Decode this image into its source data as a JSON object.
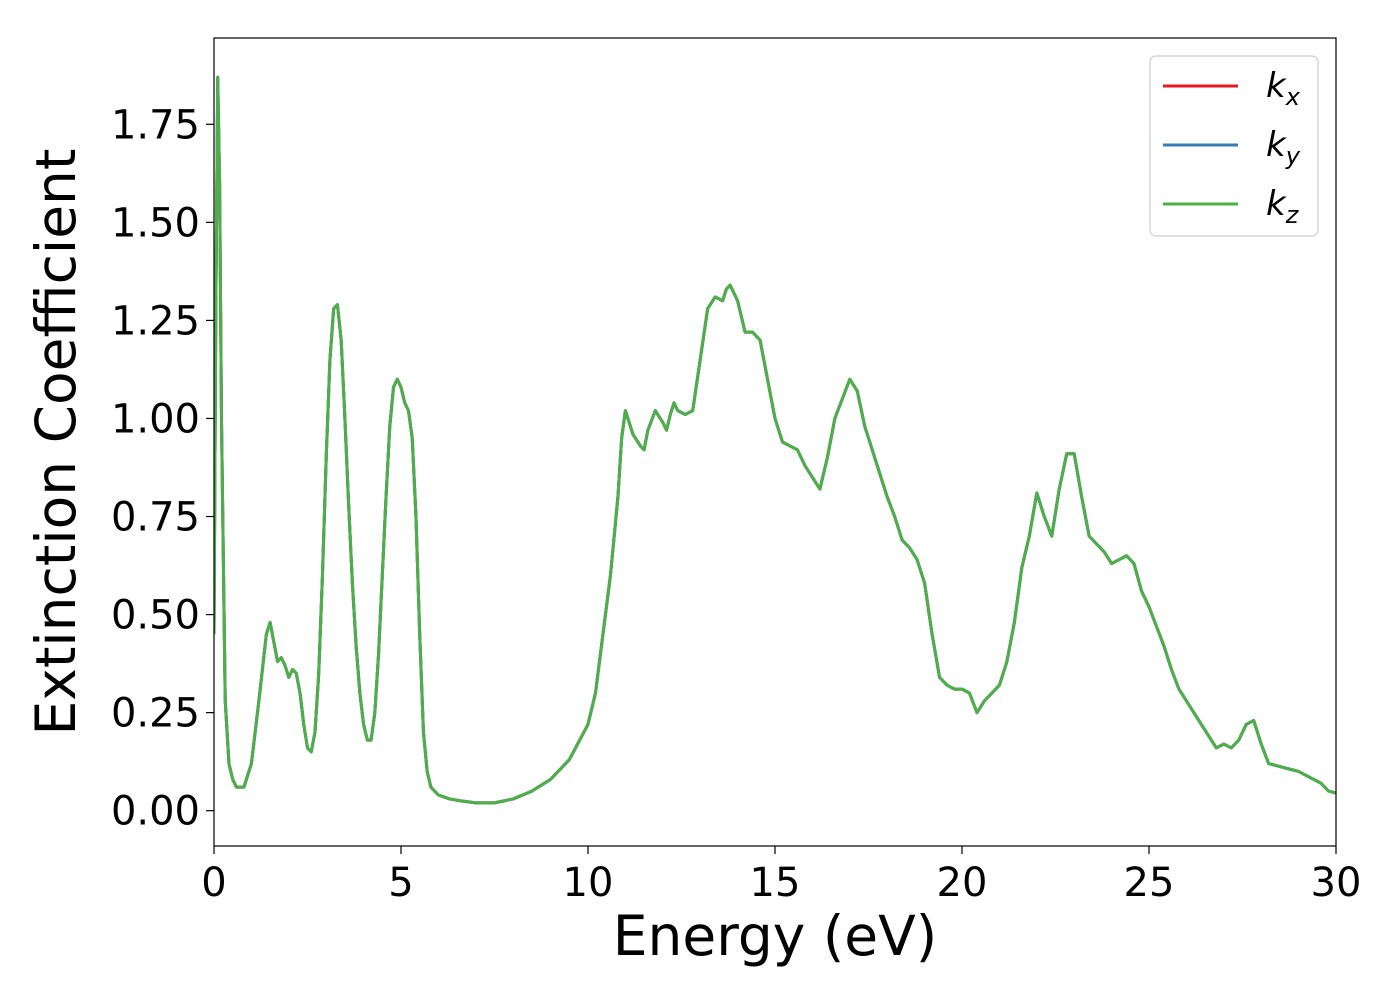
{
  "chart_data": {
    "type": "line",
    "title": "",
    "xlabel": "Energy (eV)",
    "ylabel": "Extinction Coefficient",
    "xlim": [
      0,
      30
    ],
    "ylim": [
      -0.09,
      1.97
    ],
    "xticks": [
      0,
      5,
      10,
      15,
      20,
      25,
      30
    ],
    "xtick_labels": [
      "0",
      "5",
      "10",
      "15",
      "20",
      "25",
      "30"
    ],
    "yticks": [
      0.0,
      0.25,
      0.5,
      0.75,
      1.0,
      1.25,
      1.5,
      1.75
    ],
    "ytick_labels": [
      "0.00",
      "0.25",
      "0.50",
      "0.75",
      "1.00",
      "1.25",
      "1.50",
      "1.75"
    ],
    "grid": false,
    "legend_position": "top-right",
    "x": [
      0,
      0.05,
      0.1,
      0.15,
      0.2,
      0.3,
      0.4,
      0.5,
      0.6,
      0.8,
      1.0,
      1.2,
      1.4,
      1.5,
      1.6,
      1.7,
      1.8,
      1.9,
      2.0,
      2.1,
      2.2,
      2.3,
      2.4,
      2.5,
      2.6,
      2.7,
      2.8,
      2.9,
      3.0,
      3.1,
      3.2,
      3.3,
      3.4,
      3.5,
      3.6,
      3.7,
      3.8,
      3.9,
      4.0,
      4.1,
      4.2,
      4.3,
      4.4,
      4.5,
      4.6,
      4.7,
      4.8,
      4.9,
      5.0,
      5.1,
      5.2,
      5.3,
      5.4,
      5.5,
      5.6,
      5.7,
      5.8,
      6.0,
      6.3,
      6.6,
      7.0,
      7.5,
      8.0,
      8.5,
      9.0,
      9.5,
      10.0,
      10.2,
      10.4,
      10.6,
      10.8,
      10.9,
      11.0,
      11.2,
      11.4,
      11.5,
      11.6,
      11.8,
      12.0,
      12.1,
      12.2,
      12.3,
      12.4,
      12.6,
      12.8,
      13.0,
      13.2,
      13.4,
      13.6,
      13.7,
      13.8,
      14.0,
      14.2,
      14.4,
      14.6,
      14.8,
      15.0,
      15.2,
      15.4,
      15.6,
      15.8,
      16.0,
      16.2,
      16.4,
      16.6,
      16.8,
      17.0,
      17.2,
      17.4,
      17.6,
      17.8,
      18.0,
      18.2,
      18.4,
      18.6,
      18.8,
      19.0,
      19.2,
      19.4,
      19.6,
      19.8,
      20.0,
      20.2,
      20.4,
      20.6,
      20.8,
      21.0,
      21.2,
      21.4,
      21.6,
      21.8,
      22.0,
      22.2,
      22.4,
      22.6,
      22.8,
      23.0,
      23.2,
      23.4,
      23.6,
      23.8,
      24.0,
      24.2,
      24.4,
      24.6,
      24.8,
      25.0,
      25.2,
      25.4,
      25.6,
      25.8,
      26.0,
      26.2,
      26.4,
      26.6,
      26.8,
      27.0,
      27.2,
      27.4,
      27.6,
      27.8,
      28.0,
      28.2,
      28.4,
      28.6,
      28.8,
      29.0,
      29.2,
      29.4,
      29.6,
      29.8,
      30.0
    ],
    "series": [
      {
        "name": "k",
        "name_sub": "x",
        "color": "#e41a1c",
        "values": [
          0.45,
          1.3,
          1.87,
          1.6,
          1.0,
          0.28,
          0.12,
          0.08,
          0.06,
          0.06,
          0.12,
          0.28,
          0.45,
          0.48,
          0.43,
          0.38,
          0.39,
          0.37,
          0.34,
          0.36,
          0.35,
          0.3,
          0.22,
          0.16,
          0.15,
          0.2,
          0.35,
          0.6,
          0.9,
          1.15,
          1.28,
          1.29,
          1.2,
          1.0,
          0.78,
          0.58,
          0.42,
          0.3,
          0.22,
          0.18,
          0.18,
          0.25,
          0.4,
          0.6,
          0.8,
          0.98,
          1.08,
          1.1,
          1.08,
          1.04,
          1.02,
          0.95,
          0.75,
          0.45,
          0.2,
          0.1,
          0.06,
          0.04,
          0.03,
          0.025,
          0.02,
          0.02,
          0.03,
          0.05,
          0.08,
          0.13,
          0.22,
          0.3,
          0.45,
          0.6,
          0.8,
          0.95,
          1.02,
          0.96,
          0.93,
          0.92,
          0.97,
          1.02,
          0.99,
          0.97,
          1.01,
          1.04,
          1.02,
          1.01,
          1.02,
          1.15,
          1.28,
          1.31,
          1.3,
          1.33,
          1.34,
          1.3,
          1.22,
          1.22,
          1.2,
          1.1,
          1.0,
          0.94,
          0.93,
          0.92,
          0.88,
          0.85,
          0.82,
          0.9,
          1.0,
          1.05,
          1.1,
          1.07,
          0.98,
          0.92,
          0.86,
          0.8,
          0.75,
          0.69,
          0.67,
          0.64,
          0.58,
          0.45,
          0.34,
          0.32,
          0.31,
          0.31,
          0.3,
          0.25,
          0.28,
          0.3,
          0.32,
          0.38,
          0.48,
          0.62,
          0.7,
          0.81,
          0.75,
          0.7,
          0.82,
          0.91,
          0.91,
          0.8,
          0.7,
          0.68,
          0.66,
          0.63,
          0.64,
          0.65,
          0.63,
          0.56,
          0.52,
          0.47,
          0.42,
          0.36,
          0.31,
          0.28,
          0.25,
          0.22,
          0.19,
          0.16,
          0.17,
          0.16,
          0.18,
          0.22,
          0.23,
          0.17,
          0.12,
          0.115,
          0.11,
          0.105,
          0.1,
          0.09,
          0.08,
          0.07,
          0.05,
          0.045
        ]
      },
      {
        "name": "k",
        "name_sub": "y",
        "color": "#377eb8",
        "values": [
          0.45,
          1.3,
          1.87,
          1.6,
          1.0,
          0.28,
          0.12,
          0.08,
          0.06,
          0.06,
          0.12,
          0.28,
          0.45,
          0.48,
          0.43,
          0.38,
          0.39,
          0.37,
          0.34,
          0.36,
          0.35,
          0.3,
          0.22,
          0.16,
          0.15,
          0.2,
          0.35,
          0.6,
          0.9,
          1.15,
          1.28,
          1.29,
          1.2,
          1.0,
          0.78,
          0.58,
          0.42,
          0.3,
          0.22,
          0.18,
          0.18,
          0.25,
          0.4,
          0.6,
          0.8,
          0.98,
          1.08,
          1.1,
          1.08,
          1.04,
          1.02,
          0.95,
          0.75,
          0.45,
          0.2,
          0.1,
          0.06,
          0.04,
          0.03,
          0.025,
          0.02,
          0.02,
          0.03,
          0.05,
          0.08,
          0.13,
          0.22,
          0.3,
          0.45,
          0.6,
          0.8,
          0.95,
          1.02,
          0.96,
          0.93,
          0.92,
          0.97,
          1.02,
          0.99,
          0.97,
          1.01,
          1.04,
          1.02,
          1.01,
          1.02,
          1.15,
          1.28,
          1.31,
          1.3,
          1.33,
          1.34,
          1.3,
          1.22,
          1.22,
          1.2,
          1.1,
          1.0,
          0.94,
          0.93,
          0.92,
          0.88,
          0.85,
          0.82,
          0.9,
          1.0,
          1.05,
          1.1,
          1.07,
          0.98,
          0.92,
          0.86,
          0.8,
          0.75,
          0.69,
          0.67,
          0.64,
          0.58,
          0.45,
          0.34,
          0.32,
          0.31,
          0.31,
          0.3,
          0.25,
          0.28,
          0.3,
          0.32,
          0.38,
          0.48,
          0.62,
          0.7,
          0.81,
          0.75,
          0.7,
          0.82,
          0.91,
          0.91,
          0.8,
          0.7,
          0.68,
          0.66,
          0.63,
          0.64,
          0.65,
          0.63,
          0.56,
          0.52,
          0.47,
          0.42,
          0.36,
          0.31,
          0.28,
          0.25,
          0.22,
          0.19,
          0.16,
          0.17,
          0.16,
          0.18,
          0.22,
          0.23,
          0.17,
          0.12,
          0.115,
          0.11,
          0.105,
          0.1,
          0.09,
          0.08,
          0.07,
          0.05,
          0.045
        ]
      },
      {
        "name": "k",
        "name_sub": "z",
        "color": "#4daf4a",
        "values": [
          0.45,
          1.3,
          1.87,
          1.6,
          1.0,
          0.28,
          0.12,
          0.08,
          0.06,
          0.06,
          0.12,
          0.28,
          0.45,
          0.48,
          0.43,
          0.38,
          0.39,
          0.37,
          0.34,
          0.36,
          0.35,
          0.3,
          0.22,
          0.16,
          0.15,
          0.2,
          0.35,
          0.6,
          0.9,
          1.15,
          1.28,
          1.29,
          1.2,
          1.0,
          0.78,
          0.58,
          0.42,
          0.3,
          0.22,
          0.18,
          0.18,
          0.25,
          0.4,
          0.6,
          0.8,
          0.98,
          1.08,
          1.1,
          1.08,
          1.04,
          1.02,
          0.95,
          0.75,
          0.45,
          0.2,
          0.1,
          0.06,
          0.04,
          0.03,
          0.025,
          0.02,
          0.02,
          0.03,
          0.05,
          0.08,
          0.13,
          0.22,
          0.3,
          0.45,
          0.6,
          0.8,
          0.95,
          1.02,
          0.96,
          0.93,
          0.92,
          0.97,
          1.02,
          0.99,
          0.97,
          1.01,
          1.04,
          1.02,
          1.01,
          1.02,
          1.15,
          1.28,
          1.31,
          1.3,
          1.33,
          1.34,
          1.3,
          1.22,
          1.22,
          1.2,
          1.1,
          1.0,
          0.94,
          0.93,
          0.92,
          0.88,
          0.85,
          0.82,
          0.9,
          1.0,
          1.05,
          1.1,
          1.07,
          0.98,
          0.92,
          0.86,
          0.8,
          0.75,
          0.69,
          0.67,
          0.64,
          0.58,
          0.45,
          0.34,
          0.32,
          0.31,
          0.31,
          0.3,
          0.25,
          0.28,
          0.3,
          0.32,
          0.38,
          0.48,
          0.62,
          0.7,
          0.81,
          0.75,
          0.7,
          0.82,
          0.91,
          0.91,
          0.8,
          0.7,
          0.68,
          0.66,
          0.63,
          0.64,
          0.65,
          0.63,
          0.56,
          0.52,
          0.47,
          0.42,
          0.36,
          0.31,
          0.28,
          0.25,
          0.22,
          0.19,
          0.16,
          0.17,
          0.16,
          0.18,
          0.22,
          0.23,
          0.17,
          0.12,
          0.115,
          0.11,
          0.105,
          0.1,
          0.09,
          0.08,
          0.07,
          0.05,
          0.045
        ]
      }
    ]
  }
}
